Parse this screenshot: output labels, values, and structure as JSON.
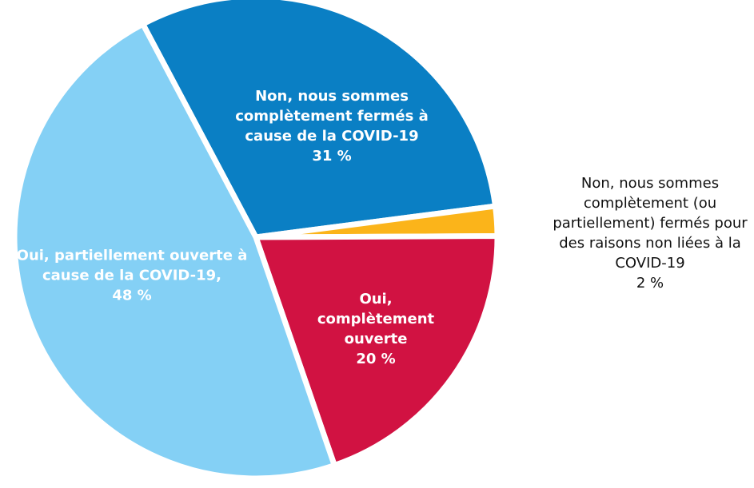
{
  "chart_data": {
    "type": "pie",
    "categories": [
      "Non, nous sommes complètement fermés à cause de la COVID-19",
      "Non, nous sommes complètement (ou partiellement) fermés pour des raisons non liées à la COVID-19",
      "Oui, complètement ouverte",
      "Oui, partiellement ouverte à cause de la COVID-19,"
    ],
    "values": [
      31,
      2,
      20,
      48
    ],
    "value_labels": [
      "31 %",
      "2 %",
      "20 %",
      "48 %"
    ],
    "colors": [
      "#0a7fc4",
      "#fbb41a",
      "#d11242",
      "#84d0f5"
    ]
  }
}
